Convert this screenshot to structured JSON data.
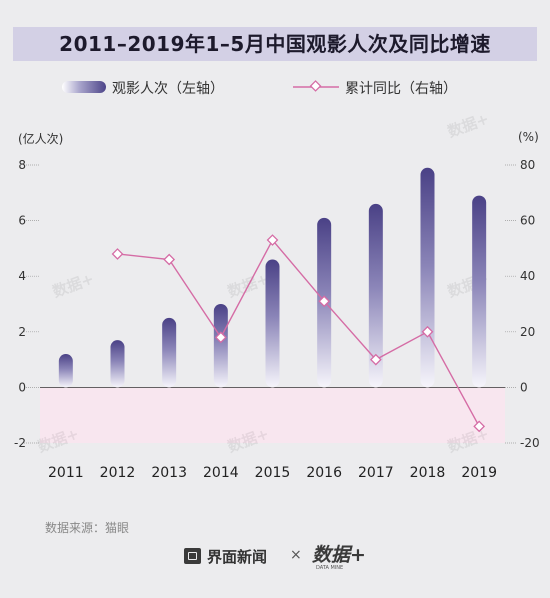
{
  "title": "2011–2019年1–5月中国观影人次及同比增速",
  "legend": {
    "bar_label": "观影人次（左轴）",
    "line_label": "累计同比（右轴）"
  },
  "axis_units": {
    "left": "(亿人次)",
    "right": "(%)"
  },
  "source": "数据来源：猫眼",
  "footer": {
    "brand": "界面新闻",
    "separator": "×",
    "logo": "数据+",
    "logo_sub": "DATA MINE"
  },
  "watermark": "数据+",
  "colors": {
    "bar_top": "#4a4186",
    "bar_bottom": "#f6f5fb",
    "line": "#d56ca5",
    "negative_band": "#f8e6ef",
    "title_bar": "#d3d0e5",
    "background": "#ececee"
  },
  "chart_data": {
    "type": "bar",
    "categories": [
      "2011",
      "2012",
      "2013",
      "2014",
      "2015",
      "2016",
      "2017",
      "2018",
      "2019"
    ],
    "series": [
      {
        "name": "观影人次（左轴）",
        "type": "bar",
        "axis": "left",
        "values": [
          1.2,
          1.7,
          2.5,
          3.0,
          4.6,
          6.1,
          6.6,
          7.9,
          6.9
        ]
      },
      {
        "name": "累计同比（右轴）",
        "type": "line",
        "axis": "right",
        "values": [
          null,
          48,
          46,
          18,
          53,
          31,
          10,
          20,
          -14
        ]
      }
    ],
    "left_axis": {
      "ylim": [
        -2,
        8
      ],
      "ticks": [
        "-2",
        "0",
        "2",
        "4",
        "6",
        "8"
      ]
    },
    "right_axis": {
      "ylim": [
        -20,
        80
      ],
      "ticks": [
        "-20",
        "0",
        "20",
        "40",
        "60",
        "80"
      ]
    },
    "negative_band": true,
    "grid": false,
    "legend_position": "top"
  }
}
